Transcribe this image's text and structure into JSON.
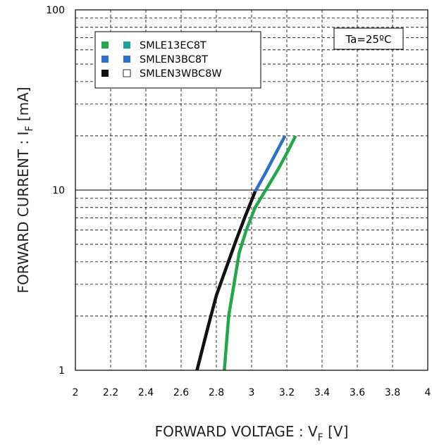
{
  "chart_data": {
    "type": "line",
    "x_scale": "linear",
    "y_scale": "log",
    "xlim": [
      2,
      4
    ],
    "ylim": [
      1,
      100
    ],
    "grid": true,
    "legend_placement": "top-left",
    "x_ticks": [
      "2",
      "2.2",
      "2.4",
      "2.6",
      "2.8",
      "3",
      "3.2",
      "3.4",
      "3.6",
      "3.8",
      "4"
    ],
    "y_ticks": [
      "1",
      "10",
      "100"
    ],
    "xlabel": {
      "main": "FORWARD VOLTAGE : V",
      "sub": "F",
      "unit": " [V]"
    },
    "ylabel": {
      "main": "FORWARD CURRENT : I",
      "sub": "F",
      "unit": " [mA]"
    },
    "annotation": "Ta=25ºC",
    "series": [
      {
        "name": "SMLE13EC8T",
        "color": "#22a84a",
        "marker_colors": [
          "#22a84a",
          "#1aa39a"
        ],
        "points": [
          [
            2.845,
            1
          ],
          [
            2.87,
            2
          ],
          [
            2.9,
            3
          ],
          [
            2.93,
            4.5
          ],
          [
            2.97,
            6
          ],
          [
            3.02,
            8
          ],
          [
            3.08,
            10
          ],
          [
            3.15,
            13
          ],
          [
            3.2,
            16
          ],
          [
            3.25,
            20
          ]
        ]
      },
      {
        "name": "SMLEN3BC8T",
        "color": "#2e6fc9",
        "marker_colors": [
          "#2e6fc9",
          "#2e6fc9"
        ],
        "points": [
          [
            2.69,
            1
          ],
          [
            2.75,
            1.7
          ],
          [
            2.8,
            2.6
          ],
          [
            2.86,
            3.8
          ],
          [
            2.91,
            5.2
          ],
          [
            2.96,
            7
          ],
          [
            3.02,
            9.8
          ],
          [
            3.08,
            12.5
          ],
          [
            3.13,
            15.5
          ],
          [
            3.19,
            20
          ]
        ]
      },
      {
        "name": "SMLEN3WBC8W",
        "color": "#111111",
        "marker_colors": [
          "#111111",
          "#ffffff"
        ],
        "points": [
          [
            2.69,
            1
          ],
          [
            2.75,
            1.7
          ],
          [
            2.8,
            2.6
          ],
          [
            2.86,
            3.8
          ],
          [
            2.91,
            5.2
          ],
          [
            2.96,
            7
          ],
          [
            3.02,
            9.8
          ]
        ]
      }
    ]
  }
}
